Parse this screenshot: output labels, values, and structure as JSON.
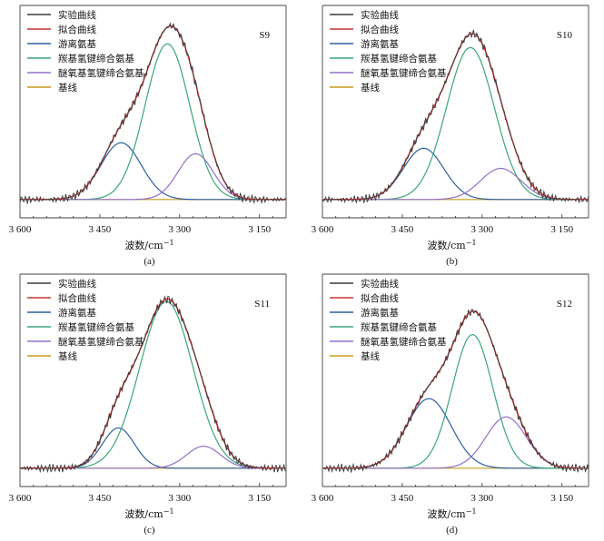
{
  "colors": {
    "experimental": "#3a3a3a",
    "fit": "#cc3333",
    "free_amino": "#2e5f9e",
    "carbonyl_hbond": "#3aa67a",
    "ether_hbond": "#9370c8",
    "baseline": "#c89a1e"
  },
  "figure": {
    "xlabel": "波数/cm",
    "xlabel_sup": "−1",
    "tick_labels": [
      "3 600",
      "3 450",
      "3 300",
      "3 150"
    ],
    "legend": [
      "实验曲线",
      "拟合曲线",
      "游离氨基",
      "羰基氢键缔合氨基",
      "醚氧基氢键缔合氨基",
      "基线"
    ]
  },
  "chart_data": [
    {
      "type": "line",
      "sample": "S9",
      "caption": "(a)",
      "xlabel": "波数/cm−1",
      "xlim": [
        3600,
        3100
      ],
      "x_reversed": true,
      "xticks": [
        3600,
        3450,
        3300,
        3150
      ],
      "series": [
        {
          "name": "游离氨基",
          "shape": "gaussian",
          "center": 3410,
          "height": 0.31,
          "sigma": 38
        },
        {
          "name": "羰基氢键缔合氨基",
          "shape": "gaussian",
          "center": 3323,
          "height": 0.85,
          "sigma": 42
        },
        {
          "name": "醚氧基氢键缔合氨基",
          "shape": "gaussian",
          "center": 3270,
          "height": 0.25,
          "sigma": 33
        },
        {
          "name": "基线",
          "values_at": [
            [
              3600,
              0.0
            ],
            [
              3100,
              0.0
            ]
          ]
        }
      ],
      "fit_peak_y": 1.0
    },
    {
      "type": "line",
      "sample": "S10",
      "caption": "(b)",
      "xlabel": "波数/cm−1",
      "xlim": [
        3600,
        3100
      ],
      "x_reversed": true,
      "xticks": [
        3600,
        3450,
        3300,
        3150
      ],
      "series": [
        {
          "name": "游离氨基",
          "shape": "gaussian",
          "center": 3410,
          "height": 0.28,
          "sigma": 38
        },
        {
          "name": "羰基氢键缔合氨基",
          "shape": "gaussian",
          "center": 3322,
          "height": 0.83,
          "sigma": 45
        },
        {
          "name": "醚氧基氢键缔合氨基",
          "shape": "gaussian",
          "center": 3265,
          "height": 0.17,
          "sigma": 38
        },
        {
          "name": "基线",
          "values_at": [
            [
              3600,
              0.0
            ],
            [
              3100,
              0.0
            ]
          ]
        }
      ],
      "fit_peak_y": 1.0
    },
    {
      "type": "line",
      "sample": "S11",
      "caption": "(c)",
      "xlabel": "波数/cm−1",
      "xlim": [
        3600,
        3100
      ],
      "x_reversed": true,
      "xticks": [
        3600,
        3450,
        3300,
        3150
      ],
      "series": [
        {
          "name": "游离氨基",
          "shape": "gaussian",
          "center": 3415,
          "height": 0.22,
          "sigma": 30
        },
        {
          "name": "羰基氢键缔合氨基",
          "shape": "gaussian",
          "center": 3325,
          "height": 0.91,
          "sigma": 50
        },
        {
          "name": "醚氧基氢键缔合氨基",
          "shape": "gaussian",
          "center": 3255,
          "height": 0.12,
          "sigma": 32
        },
        {
          "name": "基线",
          "values_at": [
            [
              3600,
              0.0
            ],
            [
              3100,
              0.0
            ]
          ]
        }
      ],
      "fit_peak_y": 1.0
    },
    {
      "type": "line",
      "sample": "S12",
      "caption": "(d)",
      "xlabel": "波数/cm−1",
      "xlim": [
        3600,
        3100
      ],
      "x_reversed": true,
      "xticks": [
        3600,
        3450,
        3300,
        3150
      ],
      "series": [
        {
          "name": "游离氨基",
          "shape": "gaussian",
          "center": 3400,
          "height": 0.38,
          "sigma": 42
        },
        {
          "name": "羰基氢键缔合氨基",
          "shape": "gaussian",
          "center": 3318,
          "height": 0.73,
          "sigma": 38
        },
        {
          "name": "醚氧基氢键缔合氨基",
          "shape": "gaussian",
          "center": 3255,
          "height": 0.28,
          "sigma": 38
        },
        {
          "name": "基线",
          "values_at": [
            [
              3600,
              0.0
            ],
            [
              3100,
              0.0
            ]
          ]
        }
      ],
      "fit_peak_y": 1.0
    }
  ]
}
